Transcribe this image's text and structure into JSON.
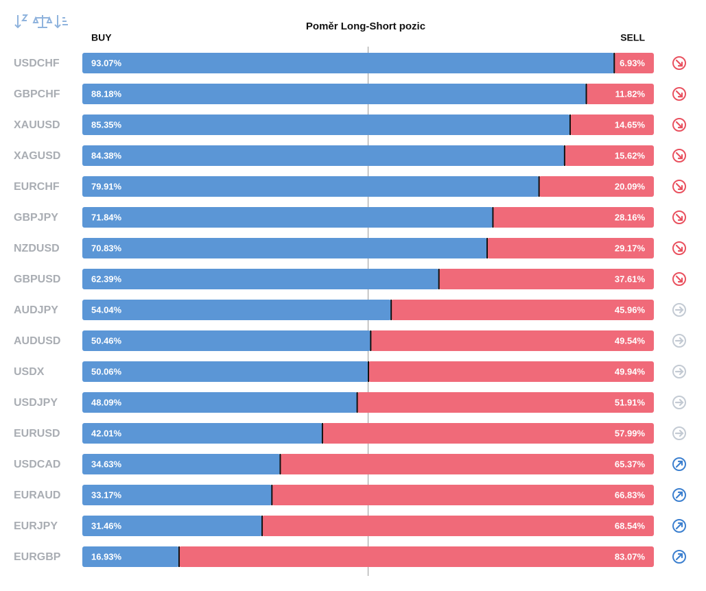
{
  "chart_data": {
    "type": "stacked-bar-horizontal",
    "title": "Poměr Long-Short pozic",
    "categories": [
      "USDCHF",
      "GBPCHF",
      "XAUUSD",
      "XAGUSD",
      "EURCHF",
      "GBPJPY",
      "NZDUSD",
      "GBPUSD",
      "AUDJPY",
      "AUDUSD",
      "USDX",
      "USDJPY",
      "EURUSD",
      "USDCAD",
      "EURAUD",
      "EURJPY",
      "EURGBP"
    ],
    "xlim": [
      0,
      100
    ],
    "series": [
      {
        "name": "BUY",
        "color": "#5b96d6",
        "values": [
          93.07,
          88.18,
          85.35,
          84.38,
          79.91,
          71.84,
          70.83,
          62.39,
          54.04,
          50.46,
          50.06,
          48.09,
          42.01,
          34.63,
          33.17,
          31.46,
          16.93
        ],
        "value_labels": [
          "93.07%",
          "88.18%",
          "85.35%",
          "84.38%",
          "79.91%",
          "71.84%",
          "70.83%",
          "62.39%",
          "54.04%",
          "50.46%",
          "50.06%",
          "48.09%",
          "42.01%",
          "34.63%",
          "33.17%",
          "31.46%",
          "16.93%"
        ]
      },
      {
        "name": "SELL",
        "color": "#f06a79",
        "values": [
          6.93,
          11.82,
          14.65,
          15.62,
          20.09,
          28.16,
          29.17,
          37.61,
          45.96,
          49.54,
          49.94,
          51.91,
          57.99,
          65.37,
          66.83,
          68.54,
          83.07
        ],
        "value_labels": [
          "6.93%",
          "11.82%",
          "14.65%",
          "15.62%",
          "20.09%",
          "28.16%",
          "29.17%",
          "37.61%",
          "45.96%",
          "49.54%",
          "49.94%",
          "51.91%",
          "57.99%",
          "65.37%",
          "66.83%",
          "68.54%",
          "83.07%"
        ]
      }
    ]
  }
}
